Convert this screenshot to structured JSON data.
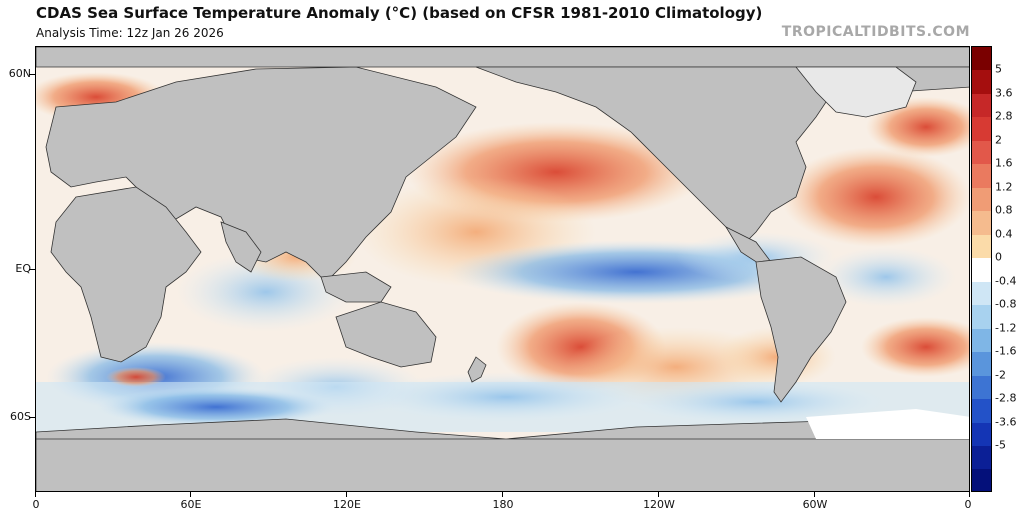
{
  "title": "CDAS Sea Surface Temperature Anomaly (°C) (based on CFSR 1981-2010 Climatology)",
  "subtitle": "Analysis Time: 12z Jan 26 2026",
  "brand": "TROPICALTIDBITS.COM",
  "map": {
    "lat_labels": [
      "60N",
      "EQ",
      "60S"
    ],
    "lon_labels": [
      "0",
      "60E",
      "120E",
      "180",
      "120W",
      "60W",
      "0"
    ],
    "land_color": "#c0c0c0",
    "ice_color": "#ffffff"
  },
  "colorbar": {
    "labels": [
      "5",
      "3.6",
      "2.8",
      "2",
      "1.6",
      "1.2",
      "0.8",
      "0.4",
      "0",
      "-0.4",
      "-0.8",
      "-1.2",
      "-1.6",
      "-2",
      "-2.8",
      "-3.6",
      "-5"
    ],
    "colors": [
      "#7a0000",
      "#a50e0e",
      "#c62828",
      "#d73a33",
      "#e2584a",
      "#ea7a5f",
      "#f09c75",
      "#f5bb8e",
      "#fbdba9",
      "#ffffff",
      "#cfe6f5",
      "#a8d2ef",
      "#7fb6e6",
      "#5a95dc",
      "#3d74d3",
      "#2352c8",
      "#1435b5",
      "#0b1f96",
      "#04107a"
    ]
  }
}
